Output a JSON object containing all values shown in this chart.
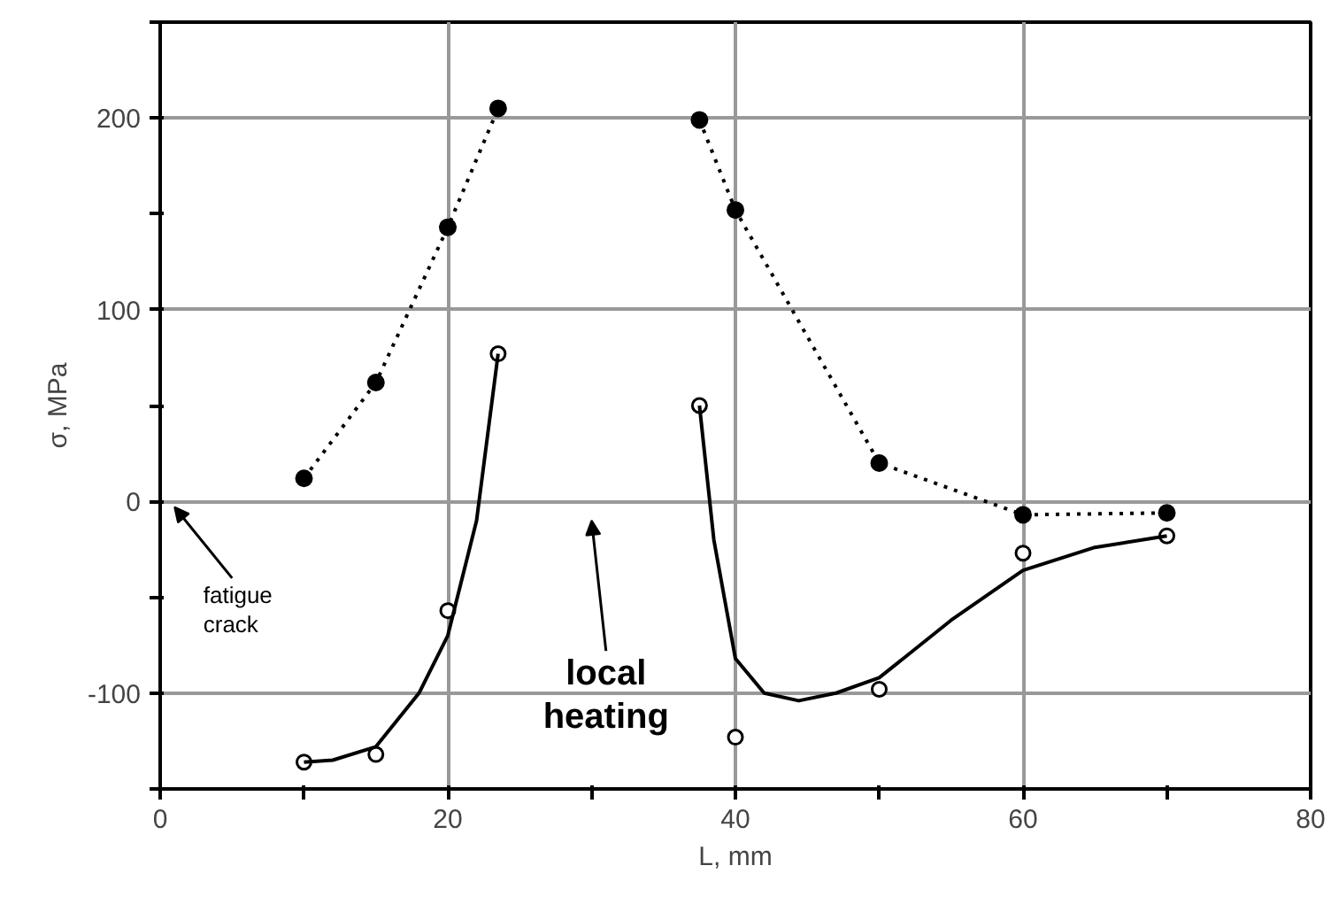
{
  "chart_data": {
    "type": "line",
    "xlabel": "L, mm",
    "ylabel": "σ, MPa",
    "xlim": [
      0,
      80
    ],
    "ylim": [
      -150,
      250
    ],
    "xticks": [
      0,
      {
        "value": 10,
        "label": null
      },
      20,
      {
        "value": 30,
        "label": null
      },
      40,
      {
        "value": 50,
        "label": null
      },
      60,
      {
        "value": 70,
        "label": null
      },
      80
    ],
    "yticks": [
      {
        "value": -150,
        "label": null
      },
      -100,
      {
        "value": -50,
        "label": null
      },
      0,
      {
        "value": 50,
        "label": null
      },
      100,
      {
        "value": 150,
        "label": null
      },
      200,
      {
        "value": 250,
        "label": null
      }
    ],
    "grid": true,
    "series": [
      {
        "color": "#000000",
        "marker": "circle",
        "line_style": "dotted",
        "x": [
          10,
          15,
          20,
          23.5,
          30,
          37.5,
          40,
          50,
          60,
          70
        ],
        "values": [
          12,
          62,
          143,
          205,
          null,
          199,
          152,
          20,
          -7,
          -6
        ]
      },
      {
        "type": "scatter",
        "color": "#000000",
        "marker": "circle",
        "x": [
          10,
          15,
          20,
          23.5,
          37.5,
          40,
          50,
          60,
          70
        ],
        "values": [
          -136,
          -132,
          -57,
          77,
          50,
          -123,
          -98,
          -27,
          -18
        ]
      },
      {
        "color": "#000000",
        "marker": "none",
        "line_style": "solid",
        "x": [
          10,
          12,
          15,
          18,
          20,
          22,
          23.5,
          30,
          37.5,
          38.5,
          40,
          42,
          44.4,
          47,
          50,
          55,
          60,
          65,
          70
        ],
        "values": [
          -136,
          -135,
          -128,
          -100,
          -70,
          -10,
          77,
          null,
          50,
          -20,
          -82,
          -100,
          -104,
          -100,
          -92,
          -62,
          -36,
          -24,
          -18
        ]
      }
    ],
    "annotations": [
      "fatigue crack",
      "local heating"
    ]
  }
}
